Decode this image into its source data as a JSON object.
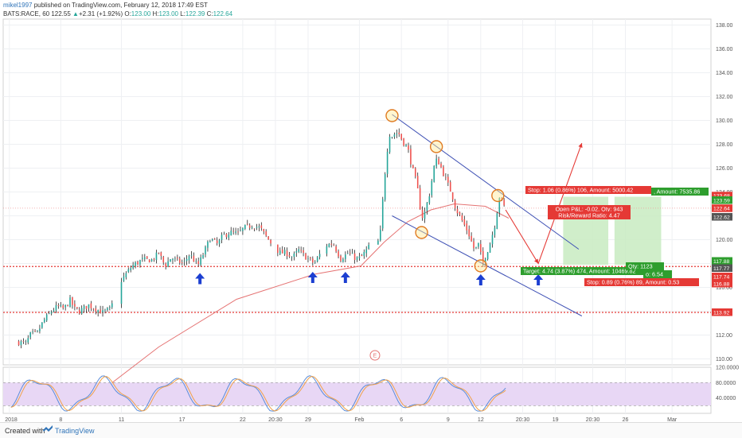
{
  "header": {
    "user": "mikel1997",
    "published": "published on TradingView.com, February 12, 2018 17:49 EST",
    "symbol": "BATS:RACE, 60",
    "last": "122.55",
    "change_arrow": "▲",
    "change": "+2.31 (+1.92%)",
    "o_label": "O:",
    "o": "123.00",
    "h_label": "H:",
    "h": "123.00",
    "l_label": "L:",
    "l": "122.39",
    "c_label": "C:",
    "c": "122.64"
  },
  "footer": {
    "created": "Created with",
    "brand": "TradingView",
    "logo_icon": "tradingview-logo-icon"
  },
  "colors": {
    "up": "#26a69a",
    "down": "#ef5350",
    "candle_up_fill": "#ffffff",
    "candle_edge": "#222222",
    "ma": "#e57373",
    "channel": "#3f51b5",
    "level": "#e53935",
    "target": "#2e9e2e",
    "stop": "#e53935",
    "stoch_band": "#e8d7f5",
    "stoch_k": "#5b8dd9",
    "stoch_d": "#f0a14b"
  },
  "chart_data": [
    {
      "type": "candlestick",
      "title": "",
      "xlabel": "",
      "ylabel": "",
      "x_tick_labels": [
        "2018",
        "8",
        "11",
        "17",
        "22",
        "20:30",
        "29",
        "Feb",
        "6",
        "9",
        "12",
        "20:30",
        "19",
        "20:30",
        "26",
        "Mar"
      ],
      "x_tick_index": [
        -12,
        54,
        132,
        210,
        288,
        330,
        372,
        438,
        492,
        552,
        594,
        648,
        690,
        738,
        780,
        840
      ],
      "y_ticks": [
        "110.00",
        "112.00",
        "114.00",
        "116.00",
        "118.00",
        "120.00",
        "122.00",
        "124.00",
        "126.00",
        "128.00",
        "130.00",
        "132.00",
        "134.00",
        "136.00",
        "138.00"
      ],
      "ylim": [
        109.5,
        138.5
      ],
      "grid": true,
      "candles": [],
      "overlays": {
        "moving_average": {
          "values": [
            [
              80,
              106.0
            ],
            [
              180,
              111.0
            ],
            [
              280,
              115.0
            ],
            [
              380,
              117.1
            ],
            [
              440,
              117.8
            ],
            [
              470,
              119.8
            ],
            [
              500,
              121.5
            ],
            [
              530,
              122.5
            ],
            [
              560,
              123.0
            ],
            [
              600,
              122.8
            ],
            [
              630,
              121.8
            ]
          ]
        },
        "channel_upper": [
          [
            480,
            130.5
          ],
          [
            720,
            119.2
          ]
        ],
        "channel_lower": [
          [
            480,
            122.0
          ],
          [
            724,
            113.6
          ]
        ],
        "horizontal_levels": [
          117.75,
          113.9
        ],
        "last_price_line": 122.64,
        "circles": [
          [
            480,
            130.4
          ],
          [
            518,
            120.6
          ],
          [
            537,
            127.8
          ],
          [
            594,
            117.8
          ],
          [
            616,
            123.7
          ]
        ],
        "support_arrows": [
          [
            233,
            117.2
          ],
          [
            378,
            117.3
          ],
          [
            420,
            117.3
          ],
          [
            594,
            117.1
          ],
          [
            668,
            117.1
          ]
        ],
        "projection_path": [
          [
            626,
            122.5
          ],
          [
            668,
            118.0
          ],
          [
            724,
            128.1
          ]
        ],
        "target_zones": [
          {
            "from_index": 700,
            "to_index": 758,
            "low": 117.9,
            "high": 123.6
          },
          {
            "from_index": 766,
            "to_index": 826,
            "low": 117.9,
            "high": 123.6
          }
        ]
      },
      "annotations": [
        {
          "name": "stop-label-top",
          "text": "Stop: 1.06 (0.86%) 106, Amount: 5000.42",
          "kind": "stop"
        },
        {
          "name": "amount-label-top",
          "text": ", Amount: 7535.86",
          "kind": "target"
        },
        {
          "name": "pnl-label",
          "text": "Open P&L: -0.02, Qty: 943",
          "kind": "stop"
        },
        {
          "name": "risk-reward-label",
          "text": "Risk/Reward Ratio: 4.47",
          "kind": "stop"
        },
        {
          "name": "target-label-bottom",
          "text": "Target: 4.74 (3.87%) 474, Amount: 10469.82",
          "kind": "target"
        },
        {
          "name": "qty-label-bottom",
          "text": "Qty: 1123",
          "kind": "target"
        },
        {
          "name": "ratio-label-bottom",
          "text": "o: 6.54",
          "kind": "target"
        },
        {
          "name": "stop-label-bottom",
          "text": "Stop: 0.89 (0.76%) 89, Amount: 0.53",
          "kind": "stop"
        },
        {
          "name": "earnings-marker",
          "text": "E",
          "kind": "marker"
        }
      ],
      "price_axis_badges": [
        {
          "value": "123.68",
          "price": 123.68,
          "kind": "stop"
        },
        {
          "value": "123.59",
          "price": 123.3,
          "kind": "target"
        },
        {
          "value": "122.64",
          "price": 122.62,
          "kind": "stop"
        },
        {
          "value": "122.62",
          "price": 121.9,
          "kind": "neutral"
        },
        {
          "value": "117.88",
          "price": 118.2,
          "kind": "target"
        },
        {
          "value": "117.77",
          "price": 117.6,
          "kind": "neutral"
        },
        {
          "value": "117.74",
          "price": 116.9,
          "kind": "stop"
        },
        {
          "value": "116.88",
          "price": 116.3,
          "kind": "stop"
        },
        {
          "value": "113.92",
          "price": 113.9,
          "kind": "stop"
        }
      ]
    },
    {
      "type": "line",
      "title": "Stochastic",
      "y_ticks": [
        "40.0000",
        "80.0000",
        "120.0000"
      ],
      "ylim": [
        0,
        120
      ],
      "band": [
        20,
        80
      ],
      "series": [
        {
          "values": []
        },
        {
          "values": []
        }
      ]
    }
  ]
}
